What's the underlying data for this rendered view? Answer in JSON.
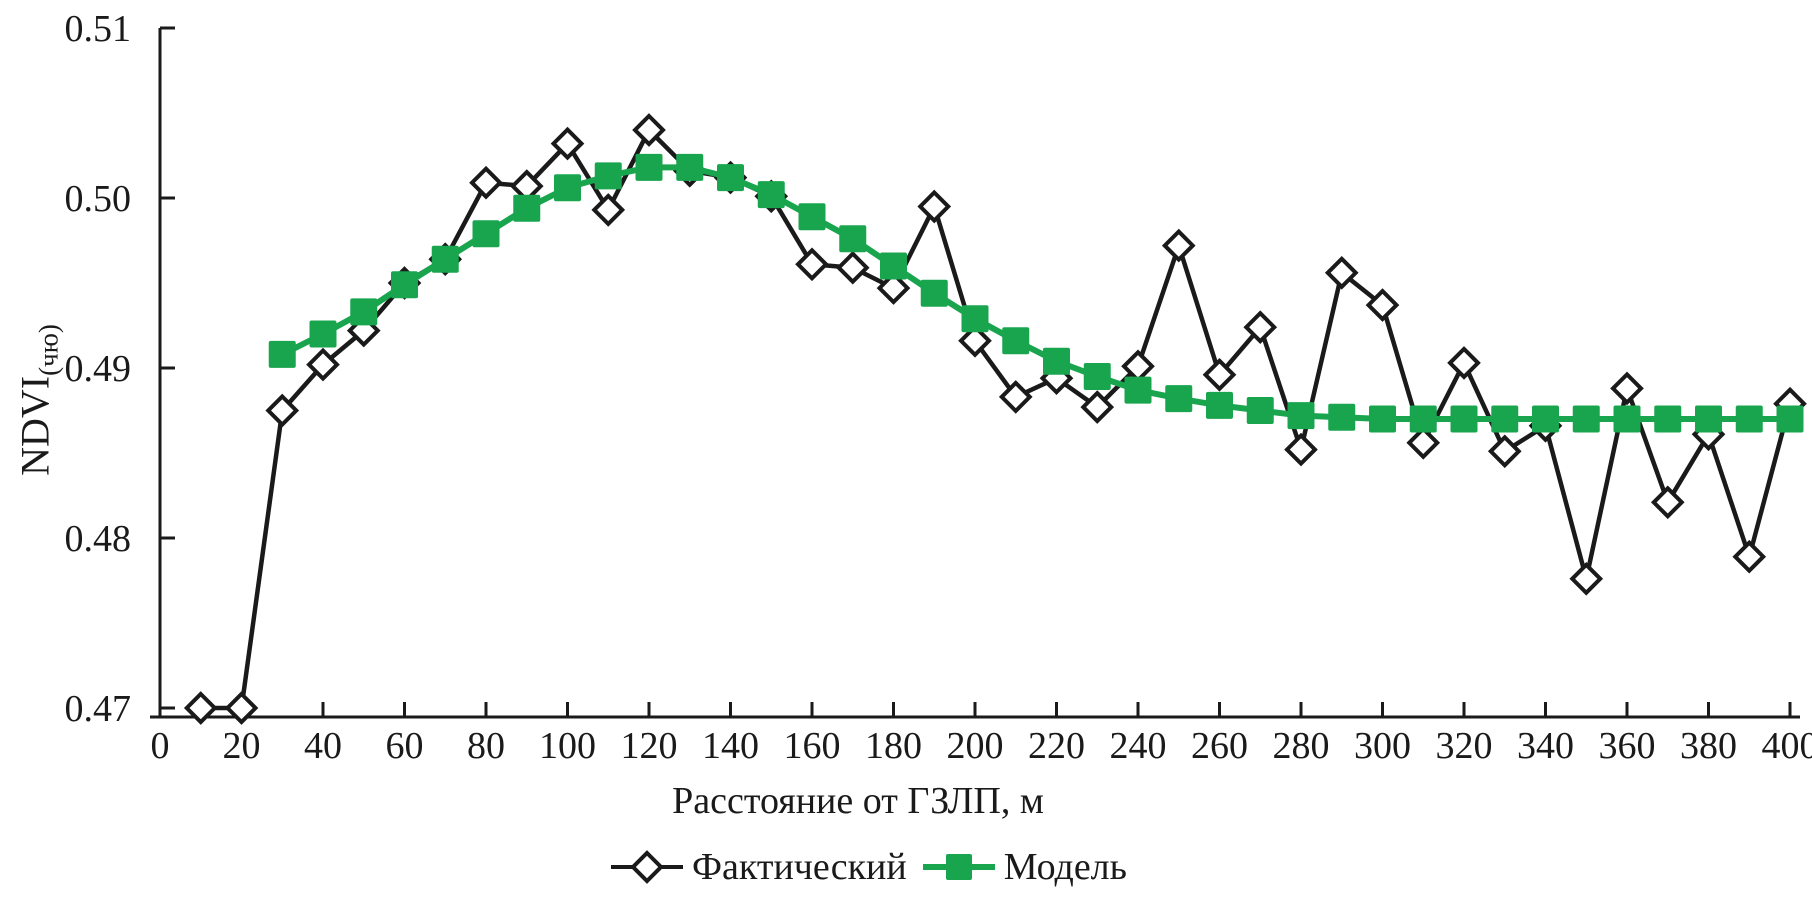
{
  "figure": {
    "background": "#ffffff",
    "text_color": "#1a1a1a"
  },
  "chart_data": {
    "type": "line",
    "title": "",
    "xlabel": "Расстояние от ГЗЛП, м",
    "ylabel": "NDVI",
    "ylabel_subscript": "(чю)",
    "xlim": [
      0,
      400
    ],
    "ylim": [
      0.47,
      0.51
    ],
    "x_ticks": [
      0,
      20,
      40,
      60,
      80,
      100,
      120,
      140,
      160,
      180,
      200,
      220,
      240,
      260,
      280,
      300,
      320,
      340,
      360,
      380,
      400
    ],
    "x_tick_labels": [
      "0",
      "20",
      "40",
      "60",
      "80",
      "100",
      "120",
      "140",
      "160",
      "180",
      "200",
      "220",
      "240",
      "260",
      "280",
      "300",
      "320",
      "340",
      "360",
      "380",
      "400"
    ],
    "y_ticks": [
      0.47,
      0.48,
      0.49,
      0.5,
      0.51
    ],
    "y_tick_labels": [
      "0.47",
      "0.48",
      "0.49",
      "0.50",
      "0.51"
    ],
    "grid": false,
    "legend_position": "bottom-center",
    "axis_color": "#1a1a1a",
    "series": [
      {
        "name": "Фактический",
        "color": "#1a1a1a",
        "marker": "open-diamond",
        "x": [
          10,
          20,
          30,
          40,
          50,
          60,
          70,
          80,
          90,
          100,
          110,
          120,
          130,
          140,
          150,
          160,
          170,
          180,
          190,
          200,
          210,
          220,
          230,
          240,
          250,
          260,
          270,
          280,
          290,
          300,
          310,
          320,
          330,
          340,
          350,
          360,
          370,
          380,
          390,
          400
        ],
        "values": [
          0.47,
          0.47,
          0.4875,
          0.4902,
          0.4922,
          0.495,
          0.4964,
          0.5009,
          0.5007,
          0.5032,
          0.4993,
          0.504,
          0.5016,
          0.5012,
          0.5001,
          0.4961,
          0.4959,
          0.4947,
          0.4995,
          0.4916,
          0.4883,
          0.4894,
          0.4877,
          0.4901,
          0.4972,
          0.4896,
          0.4924,
          0.4852,
          0.4956,
          0.4937,
          0.4856,
          0.4903,
          0.4851,
          0.4866,
          0.4776,
          0.4888,
          0.4821,
          0.4861,
          0.4789,
          0.4879
        ]
      },
      {
        "name": "Модель",
        "color": "#18a54e",
        "marker": "filled-square",
        "x": [
          30,
          40,
          50,
          60,
          70,
          80,
          90,
          100,
          110,
          120,
          130,
          140,
          150,
          160,
          170,
          180,
          190,
          200,
          210,
          220,
          230,
          240,
          250,
          260,
          270,
          280,
          290,
          300,
          310,
          320,
          330,
          340,
          350,
          360,
          370,
          380,
          390,
          400
        ],
        "values": [
          0.4908,
          0.492,
          0.4933,
          0.4949,
          0.4964,
          0.4979,
          0.4994,
          0.5006,
          0.5013,
          0.5018,
          0.5018,
          0.5012,
          0.5002,
          0.4989,
          0.4976,
          0.496,
          0.4944,
          0.4929,
          0.4916,
          0.4904,
          0.4895,
          0.4887,
          0.4882,
          0.4878,
          0.4875,
          0.4872,
          0.4871,
          0.487,
          0.487,
          0.487,
          0.487,
          0.487,
          0.487,
          0.487,
          0.487,
          0.487,
          0.487,
          0.487
        ]
      }
    ]
  }
}
